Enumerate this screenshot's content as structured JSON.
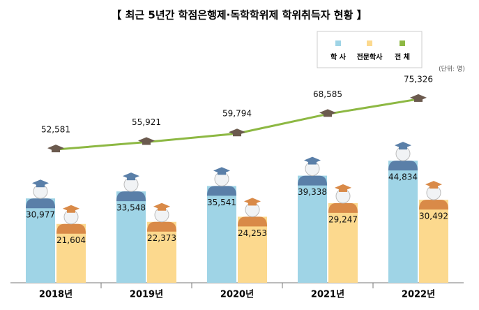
{
  "chart_data": {
    "type": "bar-line",
    "title": "【 최근 5년간 학점은행제·독학학위제 학위취득자 현황 】",
    "unit": "(단위: 명)",
    "categories": [
      "2018년",
      "2019년",
      "2020년",
      "2021년",
      "2022년"
    ],
    "series": [
      {
        "name": "학 사",
        "type": "bar",
        "color": "#9fd4e6",
        "values": [
          30977,
          33548,
          35541,
          39338,
          44834
        ],
        "value_labels": [
          "30,977",
          "33,548",
          "35,541",
          "39,338",
          "44,834"
        ]
      },
      {
        "name": "전문학사",
        "type": "bar",
        "color": "#fcd98e",
        "values": [
          21604,
          22373,
          24253,
          29247,
          30492
        ],
        "value_labels": [
          "21,604",
          "22,373",
          "24,253",
          "29,247",
          "30,492"
        ]
      },
      {
        "name": "전 체",
        "type": "line",
        "axis": "y2",
        "color": "#8db843",
        "values": [
          52581,
          55921,
          59794,
          68585,
          75326
        ],
        "value_labels": [
          "52,581",
          "55,921",
          "59,794",
          "68,585",
          "75,326"
        ]
      }
    ],
    "ylim": [
      0,
      100000
    ],
    "y2lim": [
      0,
      115000
    ]
  }
}
